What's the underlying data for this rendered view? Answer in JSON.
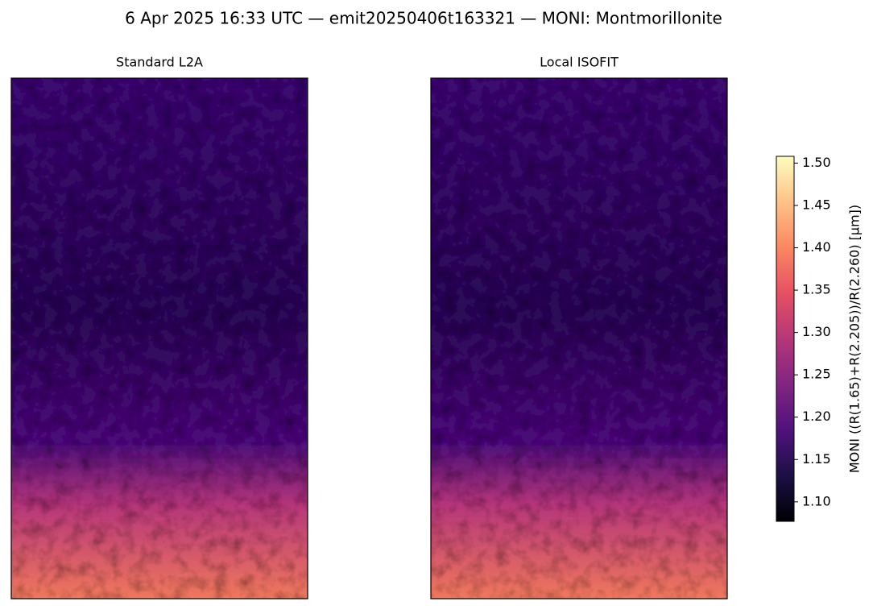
{
  "chart_data": {
    "type": "heatmap",
    "title": "6 Apr 2025 16:33 UTC — emit20250406t163321 — MONI: Montmorillonite",
    "panels": [
      {
        "title": "Standard L2A"
      },
      {
        "title": "Local ISOFIT"
      }
    ],
    "colormap": "magma",
    "colorbar": {
      "label": "MONI  ((R(1.65)+R(2.205))/R(2.260)  [µm])",
      "ylim": [
        1.077,
        1.508
      ],
      "yticks": [
        {
          "value": 1.1,
          "label": "1.10"
        },
        1.15,
        {
          "value": 1.2,
          "label": "1.20"
        },
        1.25,
        {
          "value": 1.3,
          "label": "1.30"
        },
        1.35,
        {
          "value": 1.4,
          "label": "1.40"
        },
        1.45,
        {
          "value": 1.5,
          "label": "1.50"
        }
      ]
    }
  }
}
